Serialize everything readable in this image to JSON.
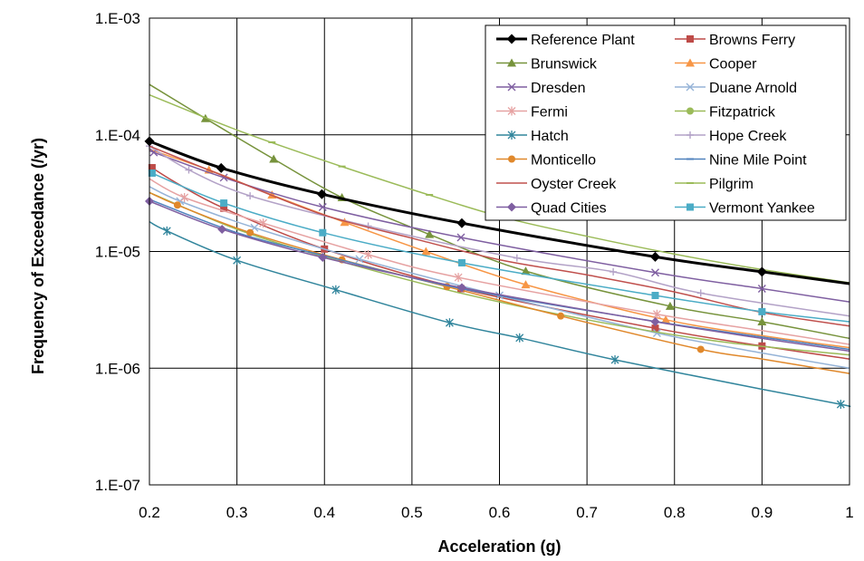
{
  "chart_data": {
    "type": "line",
    "title": "",
    "xlabel": "Acceleration (g)",
    "ylabel": "Frequency of Exceedance (/yr)",
    "xlim": [
      0.2,
      1.0
    ],
    "ylim": [
      1e-07,
      0.001
    ],
    "y_scale": "log",
    "grid": true,
    "legend_position": "top-right",
    "x_ticks": [
      "0.2",
      "0.3",
      "0.4",
      "0.5",
      "0.6",
      "0.7",
      "0.8",
      "0.9",
      "1"
    ],
    "y_ticks": [
      {
        "value": 0.001,
        "label": "1.E-03"
      },
      {
        "value": 0.0001,
        "label": "1.E-04"
      },
      {
        "value": 1e-05,
        "label": "1.E-05"
      },
      {
        "value": 1e-06,
        "label": "1.E-06"
      },
      {
        "value": 1e-07,
        "label": "1.E-07"
      }
    ],
    "series": [
      {
        "name": "Reference Plant",
        "color": "#000000",
        "marker": "diamond",
        "width": 3,
        "x": [
          0.2,
          0.282,
          0.397,
          0.557,
          0.778,
          0.9,
          1.0
        ],
        "y": [
          8.8e-05,
          5.2e-05,
          3.1e-05,
          1.75e-05,
          9e-06,
          6.7e-06,
          5.3e-06
        ],
        "markers_x": [
          0.2,
          0.282,
          0.397,
          0.557,
          0.778,
          0.9
        ]
      },
      {
        "name": "Browns Ferry",
        "color": "#BE4B48",
        "marker": "square",
        "width": 1.5,
        "x": [
          0.2,
          0.23,
          0.285,
          0.4,
          0.556,
          0.778,
          0.9,
          1.0
        ],
        "y": [
          5.4e-05,
          3.9e-05,
          2.35e-05,
          1.05e-05,
          4.8e-06,
          2.2e-06,
          1.55e-06,
          1.2e-06
        ],
        "markers_x": [
          0.203,
          0.285,
          0.4,
          0.556,
          0.778,
          0.9
        ]
      },
      {
        "name": "Brunswick",
        "color": "#77933C",
        "marker": "triangle",
        "width": 1.5,
        "x": [
          0.2,
          0.264,
          0.342,
          0.42,
          0.52,
          0.63,
          0.795,
          0.9,
          1.0
        ],
        "y": [
          0.00027,
          0.000138,
          6.2e-05,
          2.9e-05,
          1.4e-05,
          6.8e-06,
          3.4e-06,
          2.5e-06,
          1.8e-06
        ],
        "markers_x": [
          0.264,
          0.342,
          0.42,
          0.52,
          0.63,
          0.795,
          0.9
        ]
      },
      {
        "name": "Cooper",
        "color": "#F79646",
        "marker": "triangle",
        "width": 1.5,
        "x": [
          0.2,
          0.268,
          0.34,
          0.423,
          0.516,
          0.63,
          0.79,
          0.9,
          1.0
        ],
        "y": [
          7.5e-05,
          5e-05,
          3.05e-05,
          1.78e-05,
          1e-05,
          5.2e-06,
          2.6e-06,
          1.9e-06,
          1.5e-06
        ],
        "markers_x": [
          0.268,
          0.34,
          0.423,
          0.516,
          0.63,
          0.79
        ]
      },
      {
        "name": "Dresden",
        "color": "#7F5FA1",
        "marker": "x",
        "width": 1.5,
        "x": [
          0.2,
          0.285,
          0.398,
          0.556,
          0.778,
          0.9,
          1.0
        ],
        "y": [
          7.3e-05,
          4.3e-05,
          2.4e-05,
          1.32e-05,
          6.6e-06,
          4.8e-06,
          3.7e-06
        ],
        "markers_x": [
          0.205,
          0.285,
          0.398,
          0.556,
          0.778,
          0.9
        ]
      },
      {
        "name": "Duane Arnold",
        "color": "#95B3D7",
        "marker": "x",
        "width": 1.5,
        "x": [
          0.2,
          0.235,
          0.32,
          0.44,
          0.6,
          0.78,
          0.9,
          1.0
        ],
        "y": [
          3.6e-05,
          2.7e-05,
          1.6e-05,
          8.6e-06,
          4.2e-06,
          2e-06,
          1.35e-06,
          1e-06
        ],
        "markers_x": [
          0.235,
          0.32,
          0.44,
          0.6,
          0.78
        ]
      },
      {
        "name": "Fermi",
        "color": "#E6A2A2",
        "marker": "star",
        "width": 1.5,
        "x": [
          0.2,
          0.24,
          0.33,
          0.45,
          0.553,
          0.78,
          0.9,
          1.0
        ],
        "y": [
          4.2e-05,
          2.9e-05,
          1.75e-05,
          9.4e-06,
          6e-06,
          2.9e-06,
          2.1e-06,
          1.6e-06
        ],
        "markers_x": [
          0.24,
          0.33,
          0.45,
          0.553,
          0.78
        ]
      },
      {
        "name": "Fitzpatrick",
        "color": "#9BBB59",
        "marker": "circle",
        "width": 1.5,
        "x": [
          0.2,
          0.3,
          0.4,
          0.55,
          0.7,
          0.85,
          1.0
        ],
        "y": [
          3.2e-05,
          1.55e-05,
          9e-06,
          4.5e-06,
          2.6e-06,
          1.7e-06,
          1.3e-06
        ],
        "markers_x": []
      },
      {
        "name": "Hatch",
        "color": "#31859C",
        "marker": "star",
        "width": 1.5,
        "x": [
          0.2,
          0.22,
          0.3,
          0.413,
          0.543,
          0.623,
          0.732,
          0.9,
          0.99,
          1.0
        ],
        "y": [
          1.8e-05,
          1.5e-05,
          8.4e-06,
          4.7e-06,
          2.45e-06,
          1.82e-06,
          1.18e-06,
          6.6e-07,
          4.9e-07,
          4.7e-07
        ],
        "markers_x": [
          0.22,
          0.3,
          0.413,
          0.543,
          0.623,
          0.732,
          0.99
        ]
      },
      {
        "name": "Hope Creek",
        "color": "#B3A2C7",
        "marker": "plus",
        "width": 1.5,
        "x": [
          0.2,
          0.245,
          0.315,
          0.45,
          0.62,
          0.73,
          0.83,
          1.0
        ],
        "y": [
          8e-05,
          5e-05,
          3e-05,
          1.65e-05,
          8.8e-06,
          6.7e-06,
          4.4e-06,
          2.8e-06
        ],
        "markers_x": [
          0.2,
          0.245,
          0.315,
          0.45,
          0.62,
          0.73,
          0.83
        ]
      },
      {
        "name": "Monticello",
        "color": "#E0882B",
        "marker": "circle",
        "width": 1.5,
        "x": [
          0.2,
          0.232,
          0.315,
          0.42,
          0.54,
          0.67,
          0.83,
          0.9,
          1.0
        ],
        "y": [
          3.2e-05,
          2.5e-05,
          1.45e-05,
          8.5e-06,
          5e-06,
          2.8e-06,
          1.45e-06,
          1.2e-06,
          9e-07
        ],
        "markers_x": [
          0.232,
          0.315,
          0.42,
          0.54,
          0.67,
          0.83
        ]
      },
      {
        "name": "Nine Mile Point",
        "color": "#4F81BD",
        "marker": "dash",
        "width": 1.5,
        "x": [
          0.2,
          0.3,
          0.4,
          0.557,
          0.78,
          0.9,
          1.0
        ],
        "y": [
          2.8e-05,
          1.45e-05,
          9.2e-06,
          4.8e-06,
          2.5e-06,
          1.85e-06,
          1.45e-06
        ],
        "markers_x": [
          0.557
        ]
      },
      {
        "name": "Oyster Creek",
        "color": "#C0504D",
        "marker": "none",
        "width": 1.5,
        "x": [
          0.2,
          0.3,
          0.4,
          0.5,
          0.6,
          0.7,
          0.8,
          0.9,
          1.0
        ],
        "y": [
          8e-05,
          4e-05,
          2.05e-05,
          1.3e-05,
          8.5e-06,
          6.3e-06,
          4.5e-06,
          3e-06,
          2.3e-06
        ],
        "markers_x": []
      },
      {
        "name": "Pilgrim",
        "color": "#9BBB59",
        "marker": "dash",
        "width": 1.5,
        "x": [
          0.2,
          0.3,
          0.4,
          0.5,
          0.6,
          0.7,
          0.8,
          0.9,
          1.0
        ],
        "y": [
          0.00022,
          0.00011,
          6e-05,
          3.4e-05,
          2e-05,
          1.35e-05,
          9.5e-06,
          7e-06,
          5.4e-06
        ],
        "markers_x": [
          0.34,
          0.42,
          0.52
        ]
      },
      {
        "name": "Quad Cities",
        "color": "#7F5FA1",
        "marker": "diamond",
        "width": 1.5,
        "x": [
          0.2,
          0.283,
          0.398,
          0.557,
          0.778,
          0.9,
          1.0
        ],
        "y": [
          2.7e-05,
          1.55e-05,
          8.9e-06,
          4.9e-06,
          2.5e-06,
          1.8e-06,
          1.4e-06
        ],
        "markers_x": [
          0.2,
          0.283,
          0.398,
          0.557,
          0.778
        ]
      },
      {
        "name": "Vermont Yankee",
        "color": "#4BACC6",
        "marker": "square",
        "width": 1.5,
        "x": [
          0.2,
          0.285,
          0.398,
          0.557,
          0.778,
          0.9,
          1.0
        ],
        "y": [
          4.8e-05,
          2.6e-05,
          1.45e-05,
          8e-06,
          4.2e-06,
          3.05e-06,
          2.5e-06
        ],
        "markers_x": [
          0.203,
          0.285,
          0.398,
          0.557,
          0.778,
          0.9
        ]
      }
    ]
  }
}
